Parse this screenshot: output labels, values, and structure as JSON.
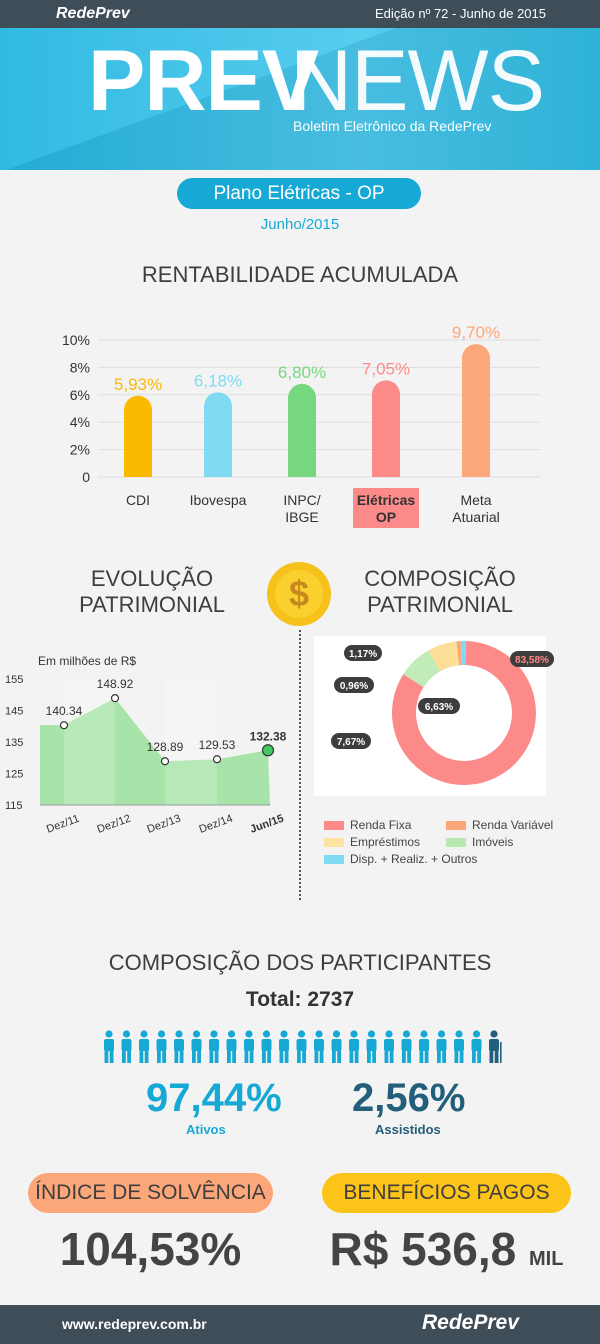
{
  "header": {
    "brand": "RedePrev",
    "edition": "Edição nº 72 - Junho de 2015",
    "title_bold": "PREV",
    "title_light": "NEWS",
    "subtitle": "Boletim Eletrônico da RedePrev"
  },
  "plan": {
    "name": "Plano Elétricas - OP",
    "date": "Junho/2015"
  },
  "rentabilidade": {
    "title": "RENTABILIDADE ACUMULADA"
  },
  "chart_data": [
    {
      "type": "bar",
      "title": "RENTABILIDADE ACUMULADA",
      "categories": [
        "CDI",
        "Ibovespa",
        "INPC/\nIBGE",
        "Elétricas\nOP",
        "Meta\nAtuarial"
      ],
      "values": [
        5.93,
        6.18,
        6.8,
        7.05,
        9.7
      ],
      "value_labels": [
        "5,93%",
        "6,18%",
        "6,80%",
        "7,05%",
        "9,70%"
      ],
      "colors": [
        "#fbb900",
        "#7fdaf3",
        "#77d77f",
        "#fc8a89",
        "#fca77a"
      ],
      "yticks": [
        "10%",
        "8%",
        "6%",
        "4%",
        "2%",
        "0"
      ],
      "ylim": [
        0,
        10
      ],
      "highlight_category": "Elétricas\nOP"
    },
    {
      "type": "area",
      "title": "EVOLUÇÃO PATRIMONIAL",
      "unit_label": "Em milhões de R$",
      "categories": [
        "Dez/11",
        "Dez/12",
        "Dez/13",
        "Dez/14",
        "Jun/15"
      ],
      "values": [
        140.34,
        148.92,
        128.89,
        129.53,
        132.38
      ],
      "value_labels": [
        "140.34",
        "148.92",
        "128.89",
        "129.53",
        "132.38"
      ],
      "yticks": [
        "155",
        "145",
        "135",
        "125",
        "115"
      ],
      "ylim": [
        115,
        155
      ]
    },
    {
      "type": "pie",
      "title": "COMPOSIÇÃO PATRIMONIAL",
      "labels": [
        "Renda Fixa",
        "Renda Variável",
        "Empréstimos",
        "Imóveis",
        "Disp. + Realiz. + Outros"
      ],
      "slices": [
        {
          "name": "Renda Fixa",
          "value": 83.58,
          "label": "83,58%",
          "color": "#fc8a89"
        },
        {
          "name": "Imóveis",
          "value": 7.67,
          "label": "7,67%",
          "color": "#c1ebb9"
        },
        {
          "name": "Empréstimos",
          "value": 6.63,
          "label": "6,63%",
          "color": "#fdde97"
        },
        {
          "name": "Renda Variável",
          "value": 0.96,
          "label": "0,96%",
          "color": "#fca77a"
        },
        {
          "name": "Disp. + Realiz. + Outros",
          "value": 1.17,
          "label": "1,17%",
          "color": "#7fdaf3"
        }
      ]
    }
  ],
  "evolucao": {
    "title_line1": "EVOLUÇÃO",
    "title_line2": "PATRIMONIAL",
    "unit_label": "Em milhões de R$"
  },
  "coin_icon": "dollar-coin-icon",
  "composicao": {
    "title_line1": "COMPOSIÇÃO",
    "title_line2": "PATRIMONIAL",
    "legend": [
      {
        "label": "Renda Fixa",
        "color": "#fc8a89"
      },
      {
        "label": "Renda Variável",
        "color": "#fca77a"
      },
      {
        "label": "Empréstimos",
        "color": "#fde3a0"
      },
      {
        "label": "Imóveis",
        "color": "#b8e9b0"
      },
      {
        "label": "Disp. + Realiz. + Outros",
        "color": "#7fdaf3"
      }
    ]
  },
  "participantes": {
    "title": "COMPOSIÇÃO DOS PARTICIPANTES",
    "total": "Total: 2737",
    "ativos_pct": "97,44%",
    "ativos_label": "Ativos",
    "assistidos_pct": "2,56%",
    "assistidos_label": "Assistidos",
    "ativos_color": "#17a9d6",
    "assistidos_color": "#235e7a"
  },
  "indices": {
    "solvencia_label": "ÍNDICE DE SOLVÊNCIA",
    "solvencia_value": "104,53%",
    "beneficios_label": "BENEFÍCIOS PAGOS",
    "beneficios_value": "R$ 536,8",
    "beneficios_unit": "MIL"
  },
  "footer": {
    "site": "www.redeprev.com.br",
    "brand": "RedePrev"
  }
}
